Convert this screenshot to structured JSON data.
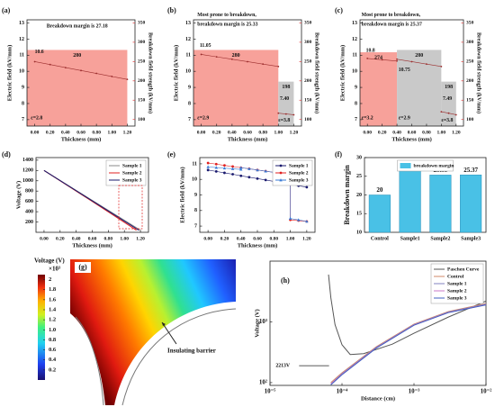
{
  "chart_data": [
    {
      "type": "line",
      "label": "(a)",
      "xlabel": "Thickness (mm)",
      "ylabel": "Electric field (kV/mm)",
      "y2label": "Breakdown field strength (kV/mm)",
      "xlim": [
        -0.1,
        1.3
      ],
      "xticks": [
        {
          "value": 0,
          "label": "0.00"
        },
        {
          "value": 0.2,
          "label": "0.20"
        },
        {
          "value": 0.4,
          "label": "0.40"
        },
        {
          "value": 0.6,
          "label": "0.60"
        },
        {
          "value": 0.8,
          "label": "0.80"
        },
        {
          "value": 1,
          "label": "1.00"
        },
        {
          "value": 1.2,
          "label": "1.20"
        }
      ],
      "ylim": [
        6.6,
        13.2
      ],
      "yticks": [
        7,
        8,
        9,
        10,
        11,
        12,
        13
      ],
      "y2lim": [
        83,
        358
      ],
      "y2ticks": [
        100,
        150,
        200,
        250,
        300,
        350
      ],
      "regions": [
        {
          "x": [
            -0.1,
            1.2
          ],
          "value": 280,
          "color": "#f7a19a"
        }
      ],
      "series": [
        {
          "color": "#9b2d2d",
          "marker": "circle",
          "x": [
            0,
            0.2,
            0.4,
            0.6,
            0.8,
            1,
            1.2
          ],
          "values": [
            10.6,
            10.42,
            10.23,
            10.05,
            9.87,
            9.68,
            9.5
          ]
        }
      ],
      "notes": [
        "Breakdown margin is 27.18",
        "10.6",
        "ε=2.8"
      ]
    },
    {
      "type": "line",
      "label": "(b)",
      "xlabel": "Thickness (mm)",
      "ylabel": "Electric field (kV/mm)",
      "y2label": "Breakdown field strength (kV/mm)",
      "xlim": [
        -0.1,
        1.3
      ],
      "xticks": [
        {
          "value": 0,
          "label": "0.00"
        },
        {
          "value": 0.2,
          "label": "0.20"
        },
        {
          "value": 0.4,
          "label": "0.40"
        },
        {
          "value": 0.6,
          "label": "0.60"
        },
        {
          "value": 0.8,
          "label": "0.80"
        },
        {
          "value": 1,
          "label": "1.00"
        },
        {
          "value": 1.2,
          "label": "1.20"
        }
      ],
      "ylim": [
        6.6,
        13.2
      ],
      "yticks": [
        7,
        8,
        9,
        10,
        11,
        12,
        13
      ],
      "y2lim": [
        83,
        358
      ],
      "y2ticks": [
        100,
        150,
        200,
        250,
        300,
        350
      ],
      "regions": [
        {
          "x": [
            -0.1,
            1
          ],
          "value": 280,
          "color": "#f7a19a"
        },
        {
          "x": [
            1,
            1.2
          ],
          "value": 198,
          "color": "#c9c9c9"
        }
      ],
      "series": [
        {
          "color": "#9b2d2d",
          "marker": "circle",
          "x": [
            0,
            0.2,
            0.4,
            0.6,
            0.8,
            1,
            null,
            1,
            1.1,
            1.2
          ],
          "values": [
            11.05,
            10.9,
            10.75,
            10.6,
            10.45,
            10.3,
            null,
            7.4,
            7.35,
            7.3
          ]
        }
      ],
      "notes": [
        "Most prone to breakdown,",
        "breakdown margin is 25.33",
        "11.05",
        "7.40",
        "ε=2.9",
        "ε=3.8"
      ]
    },
    {
      "type": "line",
      "label": "(c)",
      "xlabel": "Thickness (mm)",
      "ylabel": "Electric field (kV/mm)",
      "y2label": "Breakdown field strength (kV/mm)",
      "xlim": [
        -0.1,
        1.3
      ],
      "xticks": [
        {
          "value": 0,
          "label": "0.00"
        },
        {
          "value": 0.2,
          "label": "0.20"
        },
        {
          "value": 0.4,
          "label": "0.40"
        },
        {
          "value": 0.6,
          "label": "0.60"
        },
        {
          "value": 0.8,
          "label": "0.80"
        },
        {
          "value": 1,
          "label": "1.00"
        },
        {
          "value": 1.2,
          "label": "1.20"
        }
      ],
      "ylim": [
        6.6,
        13.2
      ],
      "yticks": [
        7,
        8,
        9,
        10,
        11,
        12,
        13
      ],
      "y2lim": [
        83,
        358
      ],
      "y2ticks": [
        100,
        150,
        200,
        250,
        300,
        350
      ],
      "regions": [
        {
          "x": [
            -0.1,
            0.4
          ],
          "value": 274,
          "color": "#f7a19a"
        },
        {
          "x": [
            0.4,
            1
          ],
          "value": 280,
          "color": "#c9c9c9"
        },
        {
          "x": [
            1,
            1.2
          ],
          "value": 198,
          "color": "#c9c9c9"
        }
      ],
      "series": [
        {
          "color": "#9b2d2d",
          "marker": "circle",
          "x": [
            0,
            0.2,
            0.4,
            null,
            0.4,
            0.6,
            0.8,
            1,
            null,
            1,
            1.1,
            1.2
          ],
          "values": [
            10.8,
            10.72,
            10.64,
            null,
            10.75,
            10.6,
            10.45,
            10.3,
            null,
            7.49,
            7.4,
            7.3
          ]
        }
      ],
      "notes": [
        "Most prone to breakdown,",
        "breakdown margin is 25.37",
        "10.8",
        "10.75",
        "7.49",
        "ε=3.2",
        "ε=2.9",
        "ε=3.8"
      ]
    },
    {
      "type": "line",
      "label": "(d)",
      "xlabel": "Thickness (mm)",
      "ylabel": "Voltage (V)",
      "xlim": [
        -0.1,
        1.3
      ],
      "xticks": [
        {
          "value": 0,
          "label": "0.00"
        },
        {
          "value": 0.2,
          "label": "0.20"
        },
        {
          "value": 0.4,
          "label": "0.40"
        },
        {
          "value": 0.6,
          "label": "0.60"
        },
        {
          "value": 0.8,
          "label": "0.80"
        },
        {
          "value": 1,
          "label": "1.00"
        },
        {
          "value": 1.2,
          "label": "1.20"
        }
      ],
      "ylim": [
        0,
        1450
      ],
      "yticks": [
        200,
        400,
        600,
        800,
        1000,
        1200,
        1400
      ],
      "legend": "upper right",
      "series": [
        {
          "name": "Sample 1",
          "color": "#8a8a8a",
          "x": [
            0,
            0.6,
            1.2
          ],
          "values": [
            1200,
            620,
            40
          ]
        },
        {
          "name": "Sample 2",
          "color": "#e02020",
          "x": [
            0,
            0.6,
            1.15
          ],
          "values": [
            1200,
            600,
            40
          ]
        },
        {
          "name": "Sample 3",
          "color": "#1a1a6e",
          "x": [
            0,
            0.6,
            1.18
          ],
          "values": [
            1200,
            610,
            40
          ]
        }
      ]
    },
    {
      "type": "line",
      "label": "(e)",
      "xlabel": "Thickness (mm)",
      "ylabel": "Electric field (kV/mm)",
      "xlim": [
        -0.1,
        1.3
      ],
      "xticks": [
        {
          "value": 0,
          "label": "0.00"
        },
        {
          "value": 0.2,
          "label": "0.20"
        },
        {
          "value": 0.4,
          "label": "0.40"
        },
        {
          "value": 0.6,
          "label": "0.60"
        },
        {
          "value": 0.8,
          "label": "0.80"
        },
        {
          "value": 1,
          "label": "1.00"
        },
        {
          "value": 1.2,
          "label": "1.20"
        }
      ],
      "ylim": [
        6.6,
        11.4
      ],
      "yticks": [
        7,
        8,
        9,
        10,
        11
      ],
      "legend": "upper right",
      "series": [
        {
          "name": "Sample 1",
          "color": "#1a1a6e",
          "marker": "circle",
          "x": [
            0,
            0.1,
            0.2,
            0.3,
            0.4,
            0.5,
            0.6,
            0.7,
            0.8,
            0.9,
            1,
            1.1,
            1.2
          ],
          "values": [
            10.6,
            10.51,
            10.42,
            10.33,
            10.23,
            10.14,
            10.05,
            9.96,
            9.87,
            9.78,
            9.68,
            9.59,
            9.5
          ]
        },
        {
          "name": "Sample 2",
          "color": "#e02020",
          "marker": "circle",
          "x": [
            0,
            0.1,
            0.2,
            0.3,
            0.4,
            0.5,
            0.6,
            0.7,
            0.8,
            0.9,
            1,
            1,
            1.1,
            1.2
          ],
          "values": [
            11.05,
            10.98,
            10.9,
            10.83,
            10.75,
            10.68,
            10.6,
            10.53,
            10.45,
            10.38,
            10.3,
            7.4,
            7.35,
            7.3
          ]
        },
        {
          "name": "Sample 3",
          "color": "#3a7bd5",
          "marker": "triangle",
          "x": [
            0,
            0.1,
            0.2,
            0.3,
            0.4,
            0.4,
            0.5,
            0.6,
            0.7,
            0.8,
            0.9,
            1,
            1,
            1.1,
            1.2
          ],
          "values": [
            10.8,
            10.76,
            10.72,
            10.68,
            10.64,
            10.75,
            10.68,
            10.6,
            10.53,
            10.45,
            10.38,
            10.3,
            7.49,
            7.4,
            7.3
          ]
        }
      ]
    },
    {
      "type": "bar",
      "label": "(f)",
      "ylabel": "Breakdown margin",
      "categories": [
        "Control",
        "Sample1",
        "Sample2",
        "Sample3"
      ],
      "ylim": [
        10,
        30
      ],
      "yticks": [
        10,
        15,
        20,
        25,
        30
      ],
      "legend": "upper center",
      "series": [
        {
          "name": "breakdown margin",
          "color": "#49c1e6",
          "values": [
            20,
            27.18,
            25.33,
            25.37
          ]
        }
      ]
    },
    {
      "type": "field",
      "label": "(g)",
      "colorbar_title": "Voltage (V)",
      "colorbar_unit": "×10³",
      "clim": [
        0,
        2.1
      ],
      "cticks": [
        0.2,
        0.4,
        0.6,
        0.8,
        {
          "value": 1,
          "label": "1.0"
        },
        1.2,
        1.4,
        1.6,
        1.8,
        2
      ],
      "note": "Insulating barrier"
    },
    {
      "type": "line",
      "label": "(h)",
      "xlabel": "Distance (cm)",
      "ylabel": "Voltage (V)",
      "xlog": true,
      "ylog": true,
      "xlim": [
        1e-05,
        0.01
      ],
      "xticks": [
        {
          "value": 1e-05,
          "label": "10⁻⁵"
        },
        {
          "value": 0.0001,
          "label": "10⁻⁴"
        },
        {
          "value": 0.001,
          "label": "10⁻³"
        },
        {
          "value": 0.01,
          "label": "10⁻²"
        }
      ],
      "ylim": [
        90,
        10000
      ],
      "yticks": [
        {
          "value": 100,
          "label": "10²"
        },
        {
          "value": 1000,
          "label": "10³"
        }
      ],
      "legend": "upper right",
      "series": [
        {
          "name": "Paschen Curve",
          "color": "#555555",
          "x": [
            6.5e-05,
            7e-05,
            8e-05,
            0.0001,
            0.00013,
            0.0002,
            0.0005,
            0.001,
            0.003,
            0.01
          ],
          "values": [
            6000,
            2500,
            900,
            420,
            290,
            300,
            430,
            650,
            1200,
            2200
          ]
        },
        {
          "name": "Control",
          "color": "#d08a6a",
          "x": [
            7e-05,
            0.0001,
            0.0003,
            0.001,
            0.003,
            0.01
          ],
          "values": [
            100,
            145,
            390,
            920,
            1480,
            2000
          ]
        },
        {
          "name": "Sample 1",
          "color": "#8080c0",
          "x": [
            7e-05,
            0.0001,
            0.0003,
            0.001,
            0.003,
            0.01
          ],
          "values": [
            95,
            140,
            380,
            900,
            1450,
            1950
          ]
        },
        {
          "name": "Sample 2",
          "color": "#c878c8",
          "x": [
            7e-05,
            0.0001,
            0.0003,
            0.001,
            0.003,
            0.01
          ],
          "values": [
            95,
            138,
            375,
            890,
            1430,
            1920
          ]
        },
        {
          "name": "Sample 3",
          "color": "#4060c0",
          "x": [
            7e-05,
            0.0001,
            0.0003,
            0.001,
            0.003,
            0.01
          ],
          "values": [
            92,
            135,
            370,
            880,
            1420,
            1900
          ]
        }
      ],
      "notes": [
        "2213V"
      ]
    }
  ]
}
